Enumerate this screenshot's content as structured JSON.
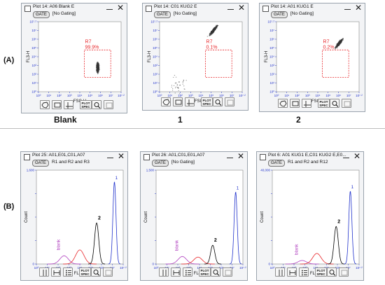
{
  "row_labels": {
    "a": "(A)",
    "b": "(B)"
  },
  "captions": {
    "blank": "Blank",
    "one": "1",
    "two": "2"
  },
  "toolbar": {
    "plot_spec_line1": "PLOT",
    "plot_spec_line2": "SPEC"
  },
  "colors": {
    "axis_blue": "#2233cc",
    "gate_red": "#e8262a",
    "blank_purple": "#b03fbf",
    "peak_black": "#000000",
    "panel_bg": "#f3f4f6"
  },
  "scatter_panels": [
    {
      "title": "Plot 14: A06 Blank E",
      "gate_button": "GATE",
      "gate_text": "[No Gating]",
      "ylabel": "FL3-H",
      "xlabel": "FSC-H",
      "region": "R7",
      "region_pct": "99.9%"
    },
    {
      "title": "Plot 14: C01 KUG2 E",
      "gate_button": "GATE",
      "gate_text": "[No Gating]",
      "ylabel": "FL3-H",
      "xlabel": "FSC-H",
      "region": "R7",
      "region_pct": "0.1%"
    },
    {
      "title": "Plot 14: A01 KUG1 E",
      "gate_button": "GATE",
      "gate_text": "[No Gating]",
      "ylabel": "FL3-H",
      "xlabel": "FSC-H",
      "region": "R7",
      "region_pct": "0.2%"
    }
  ],
  "hist_panels": [
    {
      "title": "Plot 25: A01,E01,C01,A07",
      "gate_button": "GATE",
      "gate_text": "R1 and R2 and R3",
      "ylabel": "Count",
      "xlabel": "FL3-H",
      "ymax_label": "1,600",
      "label_blank": "blank",
      "label_2": "2",
      "label_1": "1"
    },
    {
      "title": "Plot 26: A01,C01,E01,A07",
      "gate_button": "GATE",
      "gate_text": "[No Gating]",
      "ylabel": "Count",
      "xlabel": "FL4-H",
      "ymax_label": "1,500",
      "label_blank": "blank",
      "label_2": "2",
      "label_1": "1"
    },
    {
      "title": "Plot 6: A01 KUG1 E,C01 KUG2 E,E0...",
      "gate_button": "GATE",
      "gate_text": "R1 and R2 and R12",
      "ylabel": "Count",
      "xlabel": "FL3-A",
      "ymax_label": "40,000",
      "label_blank": "blank",
      "label_2": "2",
      "label_1": "1"
    }
  ],
  "chart_data": [
    {
      "type": "scatter",
      "panel": "Blank",
      "xlabel": "FSC-H",
      "ylabel": "FL3-H",
      "x_scale": "log",
      "y_scale": "log",
      "xlim": [
        1,
        16000000
      ],
      "ylim": [
        1,
        16000000
      ],
      "gate": "R7",
      "gate_percent": 99.9,
      "clusters": [
        {
          "x": 150000,
          "y": 300,
          "spread": "dense, elongated vertically"
        }
      ]
    },
    {
      "type": "scatter",
      "panel": "1",
      "xlabel": "FSC-H",
      "ylabel": "FL3-H",
      "x_scale": "log",
      "y_scale": "log",
      "xlim": [
        1,
        16000000
      ],
      "ylim": [
        1,
        16000000
      ],
      "gate": "R7",
      "gate_percent": 0.1,
      "clusters": [
        {
          "x": 50000,
          "y": 2000000,
          "spread": "dense, diagonal"
        },
        {
          "x": 50,
          "y": 5,
          "spread": "sparse"
        }
      ]
    },
    {
      "type": "scatter",
      "panel": "2",
      "xlabel": "FSC-H",
      "ylabel": "FL3-H",
      "x_scale": "log",
      "y_scale": "log",
      "xlim": [
        1,
        16000000
      ],
      "ylim": [
        1,
        16000000
      ],
      "gate": "R7",
      "gate_percent": 0.2,
      "clusters": [
        {
          "x": 300000,
          "y": 100000,
          "spread": "dense, diagonal"
        }
      ]
    },
    {
      "type": "line",
      "panel": "FL3-H histogram",
      "xlabel": "FL3-H",
      "ylabel": "Count",
      "x_scale": "log",
      "xlim": [
        1,
        16000000
      ],
      "ylim": [
        0,
        1600
      ],
      "series": [
        {
          "name": "blank",
          "color": "#b03fbf",
          "peaks": [
            {
              "x": 200,
              "y": 140
            }
          ]
        },
        {
          "color": "#e8262a",
          "peaks": [
            {
              "x": 4000,
              "y": 240
            }
          ]
        },
        {
          "name": "2",
          "color": "#000000",
          "peaks": [
            {
              "x": 100000,
              "y": 700
            }
          ]
        },
        {
          "name": "1",
          "color": "#2233cc",
          "peaks": [
            {
              "x": 3000000,
              "y": 1400
            }
          ]
        }
      ]
    },
    {
      "type": "line",
      "panel": "FL4-H histogram",
      "xlabel": "FL4-H",
      "ylabel": "Count",
      "x_scale": "log",
      "xlim": [
        1,
        16000000
      ],
      "ylim": [
        0,
        1500
      ],
      "series": [
        {
          "name": "blank",
          "color": "#b03fbf",
          "peaks": [
            {
              "x": 150,
              "y": 120
            }
          ]
        },
        {
          "color": "#e8262a",
          "peaks": [
            {
              "x": 3000,
              "y": 110
            }
          ]
        },
        {
          "name": "2",
          "color": "#000000",
          "peaks": [
            {
              "x": 50000,
              "y": 300
            }
          ]
        },
        {
          "name": "1",
          "color": "#2233cc",
          "peaks": [
            {
              "x": 4000000,
              "y": 1150
            }
          ]
        }
      ]
    },
    {
      "type": "line",
      "panel": "FL3-A histogram",
      "xlabel": "FL3-A",
      "ylabel": "Count",
      "x_scale": "log",
      "xlim": [
        1,
        16000000
      ],
      "ylim": [
        0,
        40000
      ],
      "series": [
        {
          "name": "blank",
          "color": "#b03fbf",
          "peaks": [
            {
              "x": 300,
              "y": 1500
            }
          ]
        },
        {
          "color": "#e8262a",
          "peaks": [
            {
              "x": 5000,
              "y": 4500
            }
          ]
        },
        {
          "name": "2",
          "color": "#000000",
          "peaks": [
            {
              "x": 200000,
              "y": 16000
            }
          ]
        },
        {
          "name": "1",
          "color": "#2233cc",
          "peaks": [
            {
              "x": 3000000,
              "y": 31000
            }
          ]
        }
      ]
    }
  ]
}
